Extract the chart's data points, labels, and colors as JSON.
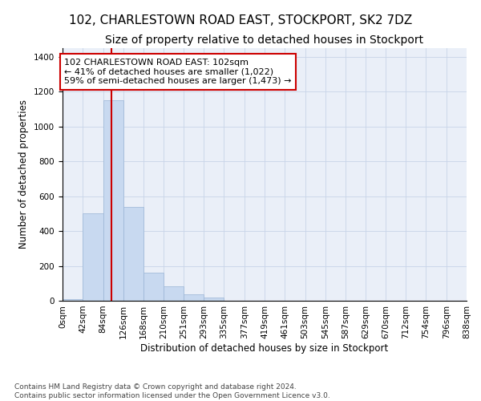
{
  "title": "102, CHARLESTOWN ROAD EAST, STOCKPORT, SK2 7DZ",
  "subtitle": "Size of property relative to detached houses in Stockport",
  "xlabel": "Distribution of detached houses by size in Stockport",
  "ylabel": "Number of detached properties",
  "bar_color": "#c8d9f0",
  "bar_edge_color": "#9ab5d5",
  "grid_color": "#c8d4e8",
  "background_color": "#eaeff8",
  "annotation_line_color": "#cc0000",
  "annotation_box_color": "#ffffff",
  "annotation_box_edge": "#cc0000",
  "footer_text": "Contains HM Land Registry data © Crown copyright and database right 2024.\nContains public sector information licensed under the Open Government Licence v3.0.",
  "annotation_text": "102 CHARLESTOWN ROAD EAST: 102sqm\n← 41% of detached houses are smaller (1,022)\n59% of semi-detached houses are larger (1,473) →",
  "property_size": 102,
  "bins": [
    0,
    42,
    84,
    126,
    168,
    210,
    251,
    293,
    335,
    377,
    419,
    461,
    503,
    545,
    587,
    629,
    670,
    712,
    754,
    796,
    838
  ],
  "counts": [
    10,
    500,
    1150,
    540,
    160,
    85,
    35,
    20,
    0,
    0,
    0,
    0,
    0,
    0,
    0,
    0,
    0,
    0,
    0,
    0
  ],
  "ylim": [
    0,
    1450
  ],
  "yticks": [
    0,
    200,
    400,
    600,
    800,
    1000,
    1200,
    1400
  ],
  "title_fontsize": 11,
  "subtitle_fontsize": 10,
  "axis_label_fontsize": 8.5,
  "tick_fontsize": 7.5,
  "annotation_fontsize": 8,
  "footer_fontsize": 6.5
}
